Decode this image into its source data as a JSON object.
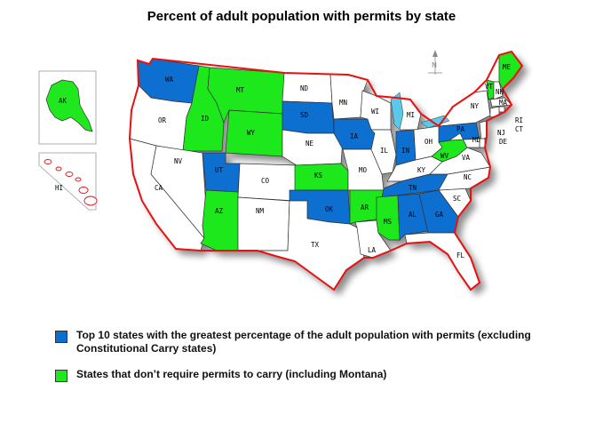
{
  "title": "Percent of adult population with permits by state",
  "colors": {
    "top10": "#0a6fd0",
    "constitutional_carry": "#1fe81f",
    "other": "#ffffff",
    "border": "#e81010",
    "outline": "#333333"
  },
  "compass_label": "N",
  "insets": {
    "alaska": "AK",
    "hawaii": "HI"
  },
  "states": {
    "WA": "WA",
    "OR": "OR",
    "CA": "CA",
    "ID": "ID",
    "NV": "NV",
    "MT": "MT",
    "WY": "WY",
    "UT": "UT",
    "AZ": "AZ",
    "CO": "CO",
    "NM": "NM",
    "ND": "ND",
    "SD": "SD",
    "NE": "NE",
    "KS": "KS",
    "OK": "OK",
    "TX": "TX",
    "MN": "MN",
    "IA": "IA",
    "MO": "MO",
    "AR": "AR",
    "LA": "LA",
    "WI": "WI",
    "IL": "IL",
    "MI": "MI",
    "IN": "IN",
    "OH": "OH",
    "KY": "KY",
    "TN": "TN",
    "MS": "MS",
    "AL": "AL",
    "GA": "GA",
    "FL": "FL",
    "SC": "SC",
    "NC": "NC",
    "VA": "VA",
    "WV": "WV",
    "PA": "PA",
    "NY": "NY",
    "VT": "VT",
    "NH": "NH",
    "ME": "ME",
    "MA": "MA",
    "RI": "RI",
    "CT": "CT",
    "NJ": "NJ",
    "DE": "DE",
    "MD": "MD"
  },
  "legend": [
    {
      "color_key": "top10",
      "text": "Top 10 states with the greatest percentage of the adult population with permits (excluding Constitutional Carry states)"
    },
    {
      "color_key": "constitutional_carry",
      "text": "States that don’t require permits to carry (including Montana)"
    }
  ]
}
